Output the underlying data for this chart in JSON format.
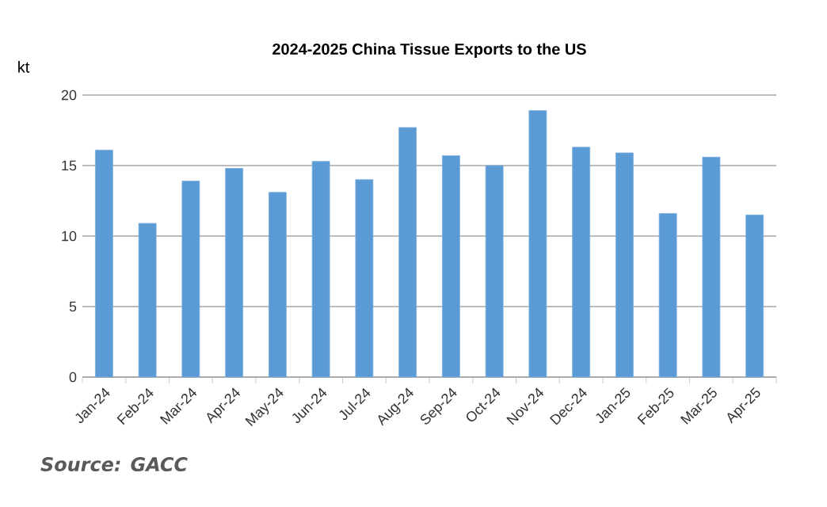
{
  "chart_data": {
    "type": "bar",
    "title": "2024-2025 China Tissue Exports to the US",
    "ylabel": "kt",
    "categories": [
      "Jan-24",
      "Feb-24",
      "Mar-24",
      "Apr-24",
      "May-24",
      "Jun-24",
      "Jul-24",
      "Aug-24",
      "Sep-24",
      "Oct-24",
      "Nov-24",
      "Dec-24",
      "Jan-25",
      "Feb-25",
      "Mar-25",
      "Apr-25"
    ],
    "values": [
      16.1,
      10.9,
      13.9,
      14.8,
      13.1,
      15.3,
      14.0,
      17.7,
      15.7,
      15.0,
      18.9,
      16.3,
      15.9,
      11.6,
      15.6,
      11.5
    ],
    "color": "#5b9bd5",
    "ylim": [
      0,
      20
    ],
    "yticks": [
      0,
      5,
      10,
      15,
      20
    ],
    "grid": "y",
    "annotations": [
      "Source: GACC"
    ]
  }
}
